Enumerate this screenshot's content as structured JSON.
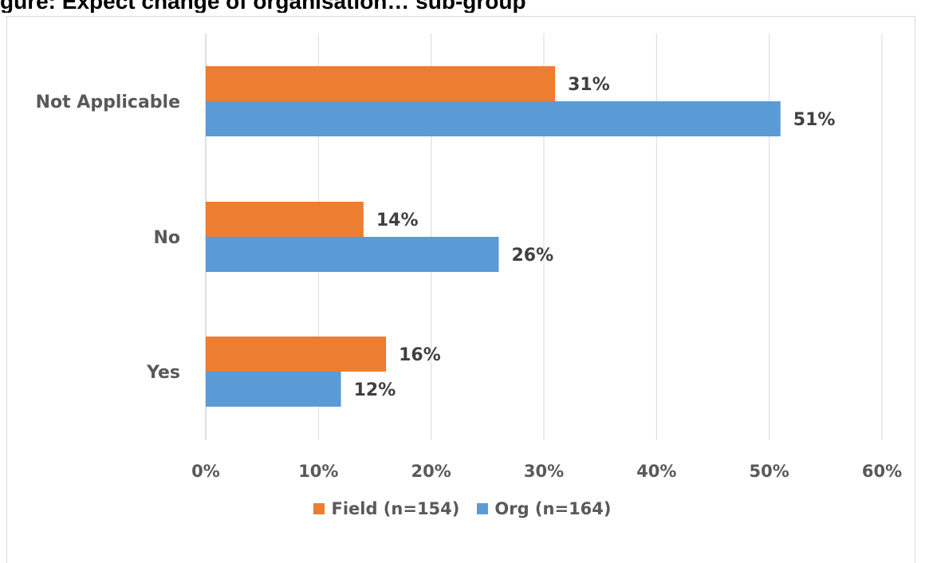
{
  "title": "gure: Expect change of organisation…  sub-group",
  "chart_data": {
    "type": "bar",
    "orientation": "horizontal",
    "categories": [
      "Not Applicable",
      "No",
      "Yes"
    ],
    "series": [
      {
        "name": "Field (n=154)",
        "color": "#ed7d31",
        "values": [
          31,
          14,
          16
        ],
        "labels": [
          "31%",
          "14%",
          "16%"
        ]
      },
      {
        "name": "Org (n=164)",
        "color": "#5b9bd5",
        "values": [
          51,
          26,
          12
        ],
        "labels": [
          "51%",
          "26%",
          "12%"
        ]
      }
    ],
    "xlim": [
      0,
      60
    ],
    "x_ticks": [
      0,
      10,
      20,
      30,
      40,
      50,
      60
    ],
    "x_tick_labels": [
      "0%",
      "10%",
      "20%",
      "30%",
      "40%",
      "50%",
      "60%"
    ],
    "grid": true,
    "legend_position": "bottom"
  },
  "legend": {
    "field_label": "Field (n=154)",
    "org_label": "Org (n=164)"
  }
}
